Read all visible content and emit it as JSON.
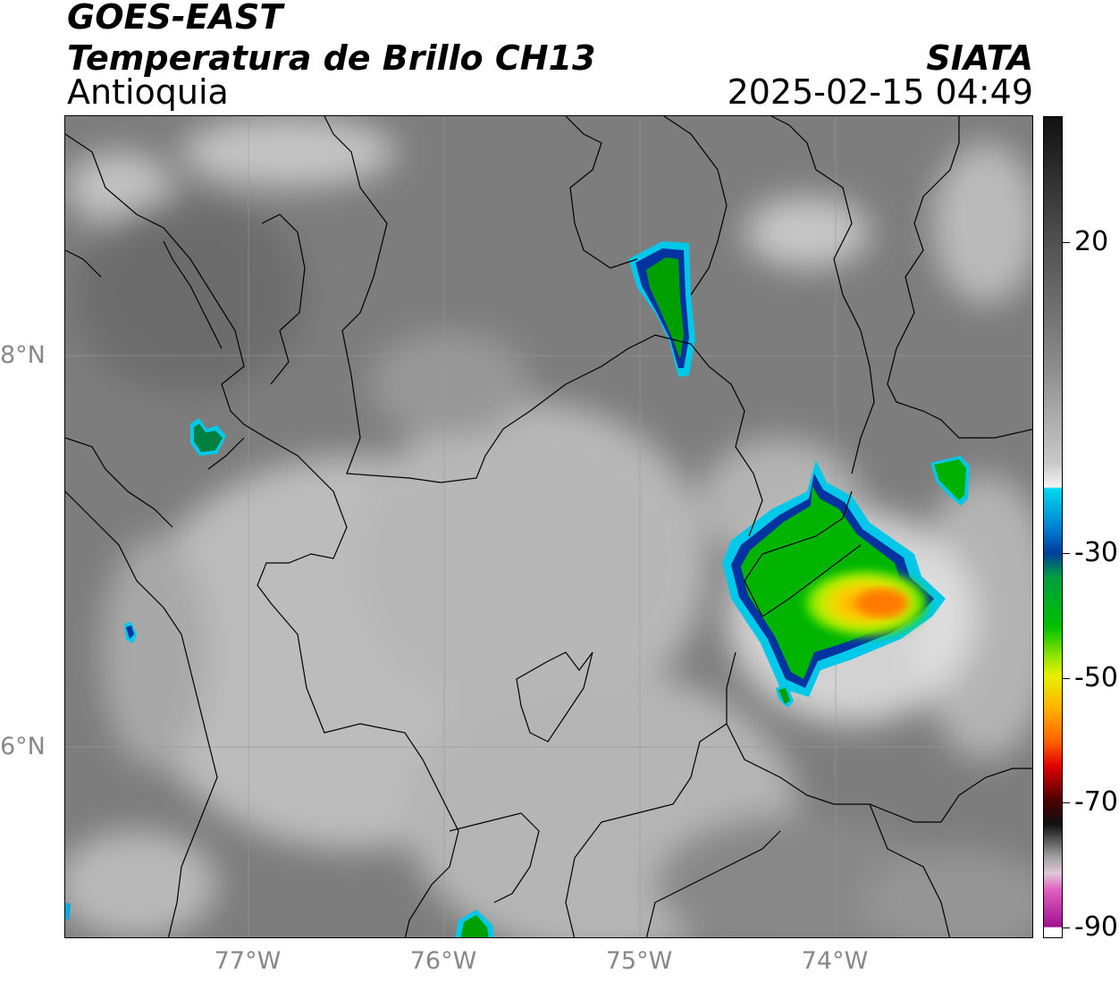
{
  "header": {
    "satellite": "GOES-EAST",
    "product": "Temperatura de Brillo CH13",
    "region": "Antioquia",
    "agency": "SIATA",
    "datetime": "2025-02-15 04:49"
  },
  "map": {
    "lat_labels": [
      "8°N",
      "6°N"
    ],
    "lon_labels": [
      "77°W",
      "76°W",
      "75°W",
      "74°W"
    ]
  },
  "colorbar": {
    "tick_labels": [
      "20",
      "-30",
      "-50",
      "-70",
      "-90"
    ],
    "colors": {
      "warm_dark": "#111111",
      "mid_gray": "#9a9a9a",
      "white": "#f4f4f4",
      "cyan": "#00d8f0",
      "blue": "#003d9c",
      "green": "#00c000",
      "yellow": "#e8f000",
      "orange": "#ff8000",
      "red": "#e00000",
      "dark": "#200000",
      "pink": "#e060c0",
      "purple": "#a01090"
    }
  }
}
